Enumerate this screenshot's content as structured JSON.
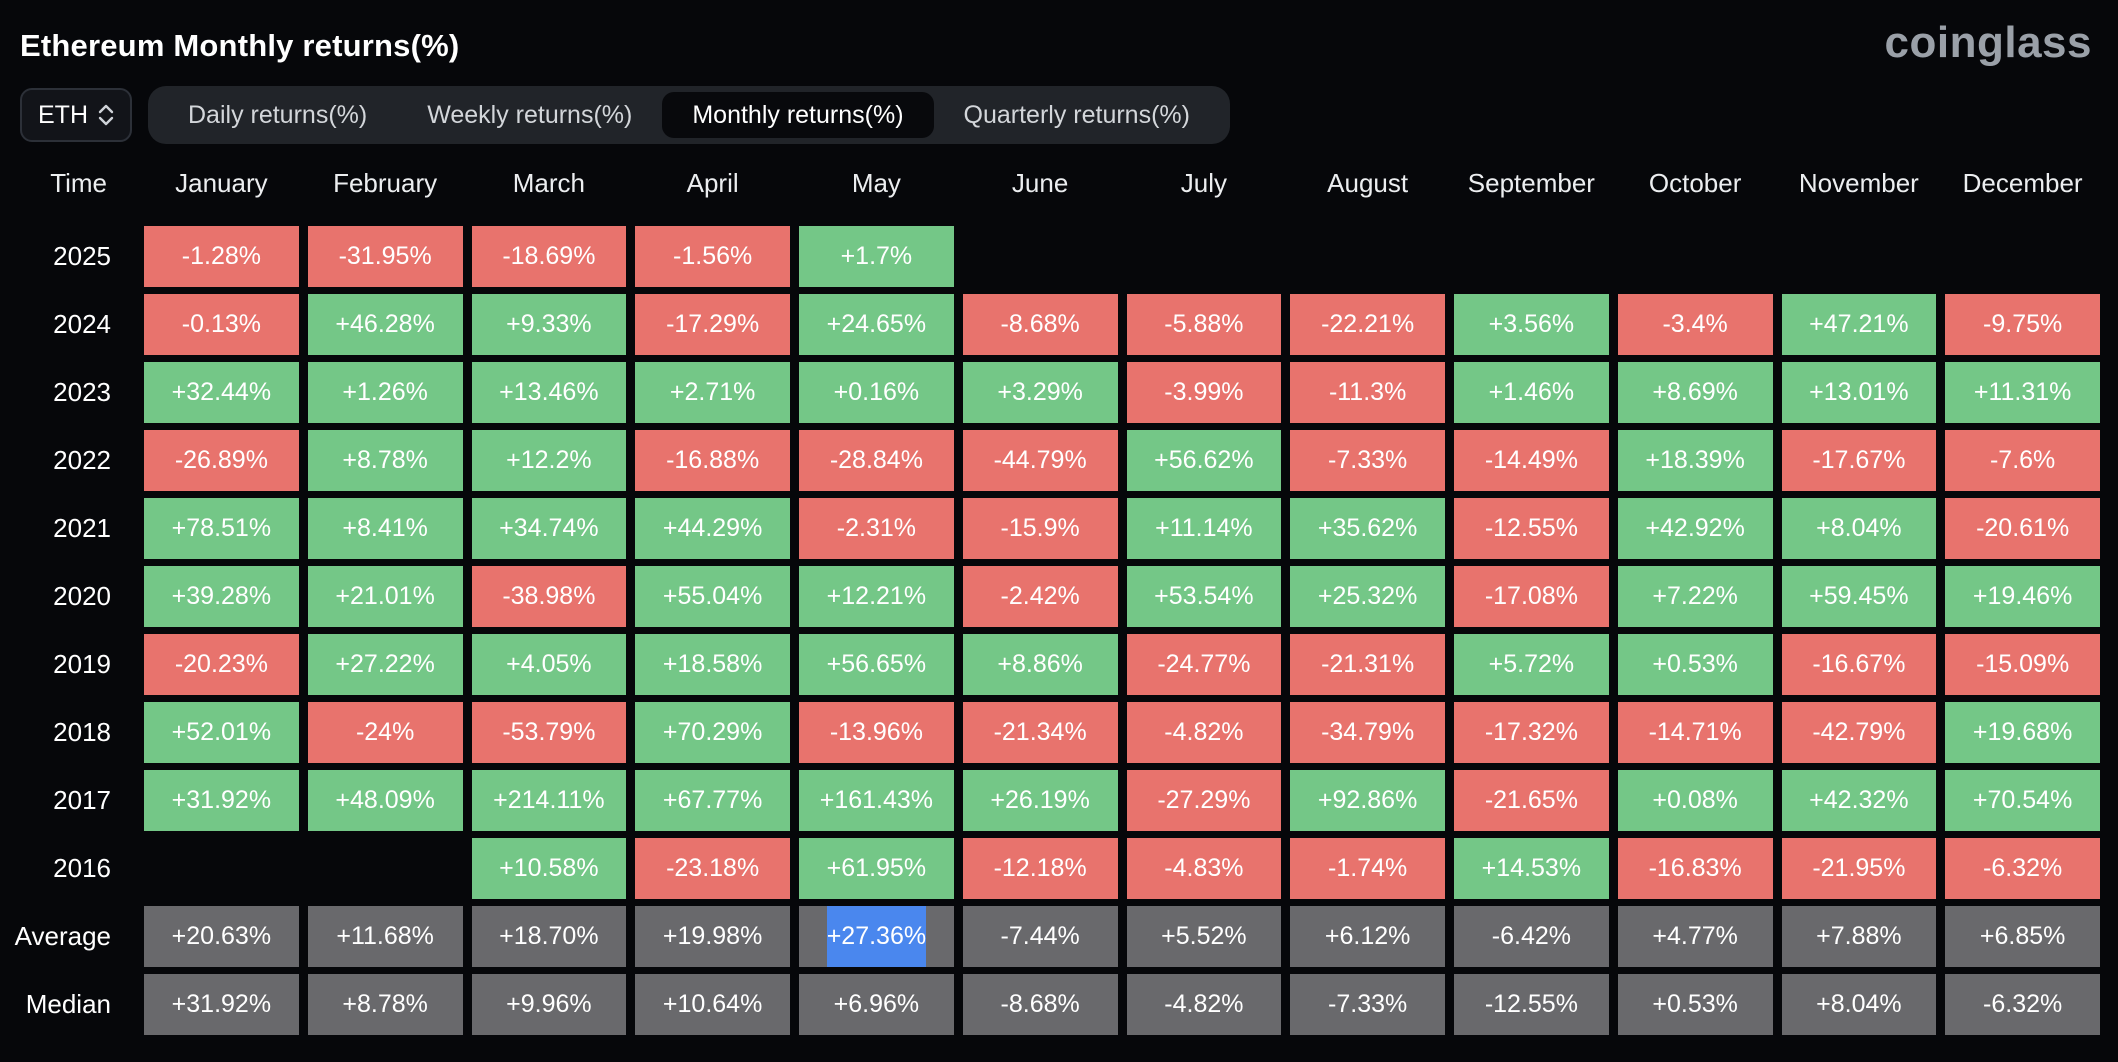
{
  "header": {
    "title": "Ethereum Monthly returns(%)",
    "logo": "coinglass",
    "symbol": "ETH",
    "tabs": [
      {
        "label": "Daily returns(%)",
        "selected": false
      },
      {
        "label": "Weekly returns(%)",
        "selected": false
      },
      {
        "label": "Monthly returns(%)",
        "selected": true
      },
      {
        "label": "Quarterly returns(%)",
        "selected": false
      }
    ]
  },
  "chart_data": {
    "type": "heatmap",
    "time_column_header": "Time",
    "columns": [
      "January",
      "February",
      "March",
      "April",
      "May",
      "June",
      "July",
      "August",
      "September",
      "October",
      "November",
      "December"
    ],
    "rows": [
      {
        "label": "2025",
        "kind": "year",
        "values": [
          "-1.28%",
          "-31.95%",
          "-18.69%",
          "-1.56%",
          "+1.7%",
          "",
          "",
          "",
          "",
          "",
          "",
          ""
        ]
      },
      {
        "label": "2024",
        "kind": "year",
        "values": [
          "-0.13%",
          "+46.28%",
          "+9.33%",
          "-17.29%",
          "+24.65%",
          "-8.68%",
          "-5.88%",
          "-22.21%",
          "+3.56%",
          "-3.4%",
          "+47.21%",
          "-9.75%"
        ]
      },
      {
        "label": "2023",
        "kind": "year",
        "values": [
          "+32.44%",
          "+1.26%",
          "+13.46%",
          "+2.71%",
          "+0.16%",
          "+3.29%",
          "-3.99%",
          "-11.3%",
          "+1.46%",
          "+8.69%",
          "+13.01%",
          "+11.31%"
        ]
      },
      {
        "label": "2022",
        "kind": "year",
        "values": [
          "-26.89%",
          "+8.78%",
          "+12.2%",
          "-16.88%",
          "-28.84%",
          "-44.79%",
          "+56.62%",
          "-7.33%",
          "-14.49%",
          "+18.39%",
          "-17.67%",
          "-7.6%"
        ]
      },
      {
        "label": "2021",
        "kind": "year",
        "values": [
          "+78.51%",
          "+8.41%",
          "+34.74%",
          "+44.29%",
          "-2.31%",
          "-15.9%",
          "+11.14%",
          "+35.62%",
          "-12.55%",
          "+42.92%",
          "+8.04%",
          "-20.61%"
        ]
      },
      {
        "label": "2020",
        "kind": "year",
        "values": [
          "+39.28%",
          "+21.01%",
          "-38.98%",
          "+55.04%",
          "+12.21%",
          "-2.42%",
          "+53.54%",
          "+25.32%",
          "-17.08%",
          "+7.22%",
          "+59.45%",
          "+19.46%"
        ]
      },
      {
        "label": "2019",
        "kind": "year",
        "values": [
          "-20.23%",
          "+27.22%",
          "+4.05%",
          "+18.58%",
          "+56.65%",
          "+8.86%",
          "-24.77%",
          "-21.31%",
          "+5.72%",
          "+0.53%",
          "-16.67%",
          "-15.09%"
        ]
      },
      {
        "label": "2018",
        "kind": "year",
        "values": [
          "+52.01%",
          "-24%",
          "-53.79%",
          "+70.29%",
          "-13.96%",
          "-21.34%",
          "-4.82%",
          "-34.79%",
          "-17.32%",
          "-14.71%",
          "-42.79%",
          "+19.68%"
        ]
      },
      {
        "label": "2017",
        "kind": "year",
        "values": [
          "+31.92%",
          "+48.09%",
          "+214.11%",
          "+67.77%",
          "+161.43%",
          "+26.19%",
          "-27.29%",
          "+92.86%",
          "-21.65%",
          "+0.08%",
          "+42.32%",
          "+70.54%"
        ]
      },
      {
        "label": "2016",
        "kind": "year",
        "values": [
          "",
          "",
          "+10.58%",
          "-23.18%",
          "+61.95%",
          "-12.18%",
          "-4.83%",
          "-1.74%",
          "+14.53%",
          "-16.83%",
          "-21.95%",
          "-6.32%"
        ]
      },
      {
        "label": "Average",
        "kind": "stat",
        "values": [
          "+20.63%",
          "+11.68%",
          "+18.70%",
          "+19.98%",
          "+27.36%",
          "-7.44%",
          "+5.52%",
          "+6.12%",
          "-6.42%",
          "+4.77%",
          "+7.88%",
          "+6.85%"
        ]
      },
      {
        "label": "Median",
        "kind": "stat",
        "values": [
          "+31.92%",
          "+8.78%",
          "+9.96%",
          "+10.64%",
          "+6.96%",
          "-8.68%",
          "-4.82%",
          "-7.33%",
          "-12.55%",
          "+0.53%",
          "+8.04%",
          "-6.32%"
        ]
      }
    ],
    "highlight": {
      "row": "Average",
      "column": "May",
      "value": "+27.36%"
    },
    "colors": {
      "positive": "#74c787",
      "negative": "#e8736d",
      "neutral": "#69696c",
      "highlight": "#4a87ee",
      "background": "#06070a"
    }
  }
}
